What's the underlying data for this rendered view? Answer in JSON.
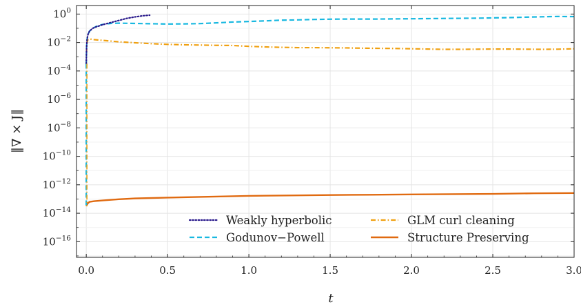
{
  "chart_data": {
    "type": "line",
    "title": "",
    "xlabel": "t",
    "ylabel": "‖∇ × J‖",
    "y_scale": "log",
    "xlim": [
      -0.06,
      3.0
    ],
    "ylim_log10": [
      -17.1,
      0.6
    ],
    "grid": true,
    "legend_position": "bottom-right",
    "legend_columns": 2,
    "x_ticks": [
      0.0,
      0.5,
      1.0,
      1.5,
      2.0,
      2.5,
      3.0
    ],
    "x_tick_labels": [
      "0.0",
      "0.5",
      "1.0",
      "1.5",
      "2.0",
      "2.5",
      "3.0"
    ],
    "y_ticks_log10": [
      0,
      -2,
      -4,
      -6,
      -8,
      -10,
      -12,
      -14,
      -16
    ],
    "y_tick_labels": [
      {
        "base": "10",
        "exp": "0"
      },
      {
        "base": "10",
        "exp": "−2"
      },
      {
        "base": "10",
        "exp": "−4"
      },
      {
        "base": "10",
        "exp": "−6"
      },
      {
        "base": "10",
        "exp": "−8"
      },
      {
        "base": "10",
        "exp": "−10"
      },
      {
        "base": "10",
        "exp": "−12"
      },
      {
        "base": "10",
        "exp": "−14"
      },
      {
        "base": "10",
        "exp": "−16"
      }
    ],
    "series": [
      {
        "name": "Weakly hyperbolic",
        "color": "#2a1a8c",
        "dash": "dotted",
        "x": [
          0.0,
          0.002,
          0.005,
          0.01,
          0.02,
          0.04,
          0.06,
          0.08,
          0.1,
          0.15,
          0.2,
          0.25,
          0.3,
          0.35,
          0.39
        ],
        "log10_y": [
          -3.5,
          -2.3,
          -1.8,
          -1.45,
          -1.2,
          -1.0,
          -0.9,
          -0.83,
          -0.75,
          -0.6,
          -0.45,
          -0.3,
          -0.2,
          -0.12,
          -0.08
        ]
      },
      {
        "name": "Godunov−Powell",
        "color": "#18b8e0",
        "dash": "dashed",
        "x": [
          0.0,
          0.002,
          0.005,
          0.01,
          0.02,
          0.04,
          0.06,
          0.08,
          0.1,
          0.15,
          0.2,
          0.3,
          0.4,
          0.5,
          0.6,
          0.7,
          0.8,
          0.9,
          1.0,
          1.1,
          1.2,
          1.3,
          1.4,
          1.5,
          1.6,
          1.7,
          1.8,
          1.9,
          2.0,
          2.1,
          2.2,
          2.3,
          2.4,
          2.5,
          2.6,
          2.7,
          2.8,
          2.9,
          3.0
        ],
        "log10_y": [
          -3.5,
          -2.3,
          -1.8,
          -1.45,
          -1.2,
          -1.0,
          -0.88,
          -0.8,
          -0.73,
          -0.66,
          -0.64,
          -0.66,
          -0.68,
          -0.7,
          -0.69,
          -0.67,
          -0.62,
          -0.56,
          -0.52,
          -0.48,
          -0.43,
          -0.41,
          -0.38,
          -0.36,
          -0.35,
          -0.35,
          -0.35,
          -0.34,
          -0.33,
          -0.32,
          -0.31,
          -0.3,
          -0.29,
          -0.27,
          -0.25,
          -0.22,
          -0.19,
          -0.17,
          -0.18
        ]
      },
      {
        "name": "GLM curl cleaning",
        "color": "#f0a010",
        "dash": "dashdot",
        "x": [
          0.0,
          0.002,
          0.005,
          0.01,
          0.02,
          0.05,
          0.1,
          0.2,
          0.3,
          0.4,
          0.5,
          0.6,
          0.7,
          0.8,
          0.9,
          1.0,
          1.1,
          1.2,
          1.3,
          1.4,
          1.5,
          1.6,
          1.7,
          1.8,
          1.9,
          2.0,
          2.1,
          2.2,
          2.3,
          2.4,
          2.5,
          2.6,
          2.7,
          2.8,
          2.9,
          3.0
        ],
        "log10_y": [
          -3.5,
          -2.5,
          -2.0,
          -1.8,
          -1.75,
          -1.8,
          -1.85,
          -1.95,
          -2.02,
          -2.08,
          -2.13,
          -2.16,
          -2.18,
          -2.2,
          -2.21,
          -2.27,
          -2.31,
          -2.34,
          -2.36,
          -2.36,
          -2.37,
          -2.38,
          -2.4,
          -2.41,
          -2.42,
          -2.44,
          -2.46,
          -2.48,
          -2.48,
          -2.47,
          -2.46,
          -2.46,
          -2.47,
          -2.48,
          -2.47,
          -2.44
        ]
      },
      {
        "name": "Structure Preserving",
        "color": "#e06a10",
        "dash": "solid",
        "x": [
          0.0,
          0.005,
          0.01,
          0.02,
          0.05,
          0.1,
          0.2,
          0.3,
          0.5,
          0.75,
          1.0,
          1.25,
          1.5,
          1.75,
          2.0,
          2.25,
          2.5,
          2.75,
          3.0
        ],
        "log10_y": [
          -13.5,
          -13.4,
          -13.3,
          -13.2,
          -13.15,
          -13.1,
          -13.02,
          -12.96,
          -12.9,
          -12.84,
          -12.78,
          -12.75,
          -12.72,
          -12.7,
          -12.68,
          -12.66,
          -12.64,
          -12.6,
          -12.58
        ]
      }
    ],
    "initial_spike": {
      "x": 0.0,
      "log10_top": -3.5,
      "log10_bottom": -13.5
    }
  }
}
